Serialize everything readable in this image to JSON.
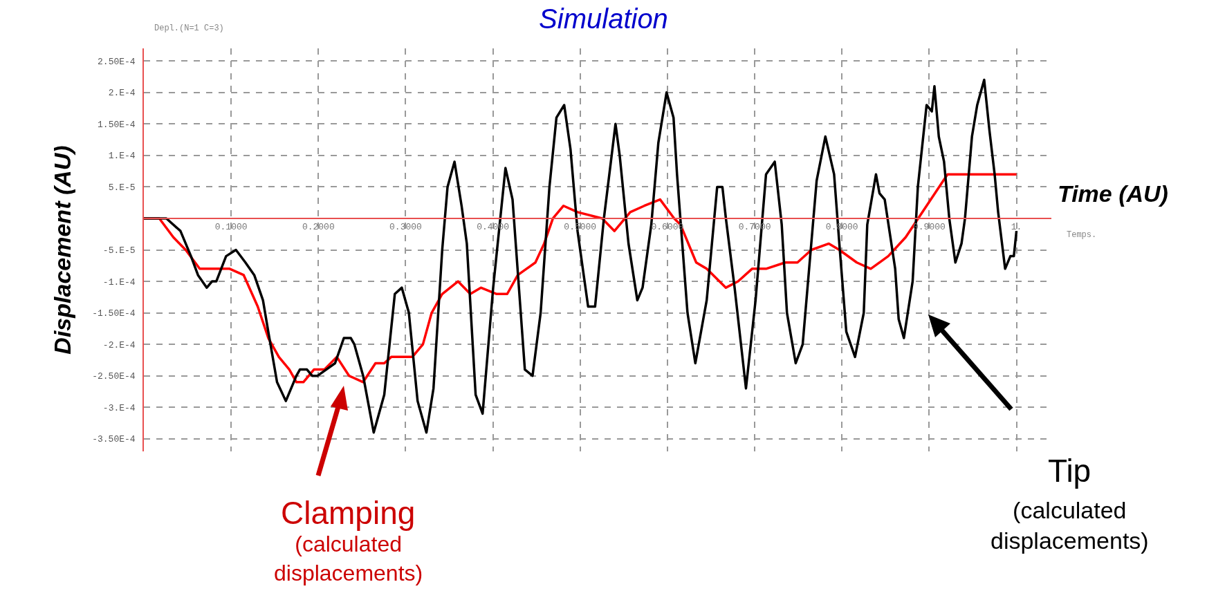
{
  "chart_data": {
    "type": "line",
    "title": "Simulation",
    "xlabel": "Time (AU)",
    "ylabel": "Displacement (AU)",
    "xlim": [
      0,
      1.04
    ],
    "ylim": [
      -0.00037,
      0.00027
    ],
    "xticks": [
      {
        "value": 0.1,
        "label": "0.1000"
      },
      {
        "value": 0.2,
        "label": "0.2000"
      },
      {
        "value": 0.3,
        "label": "0.3000"
      },
      {
        "value": 0.4,
        "label": "0.4000"
      },
      {
        "value": 0.5,
        "label": "0.5000"
      },
      {
        "value": 0.6,
        "label": "0.6000"
      },
      {
        "value": 0.7,
        "label": "0.7000"
      },
      {
        "value": 0.8,
        "label": "0.8000"
      },
      {
        "value": 0.9,
        "label": "0.9000"
      },
      {
        "value": 1,
        "label": "1."
      }
    ],
    "yticks": [
      {
        "value": 0.00025,
        "label": "2.50E-4"
      },
      {
        "value": 0.0002,
        "label": "2.E-4"
      },
      {
        "value": 0.00015,
        "label": "1.50E-4"
      },
      {
        "value": 0.0001,
        "label": "1.E-4"
      },
      {
        "value": 5e-05,
        "label": "5.E-5"
      },
      {
        "value": -5e-05,
        "label": "-5.E-5"
      },
      {
        "value": -0.0001,
        "label": "-1.E-4"
      },
      {
        "value": -0.00015,
        "label": "-1.50E-4"
      },
      {
        "value": -0.0002,
        "label": "-2.E-4"
      },
      {
        "value": -0.00025,
        "label": "-2.50E-4"
      },
      {
        "value": -0.0003,
        "label": "-3.E-4"
      },
      {
        "value": -0.00035,
        "label": "-3.50E-4"
      }
    ],
    "grid": true,
    "marker": "none",
    "line_style": "solid",
    "series": [
      {
        "color": "#ff0000",
        "x": [
          0,
          0.0177,
          0.0338,
          0.0479,
          0.064,
          0.0761,
          0.083,
          0.0983,
          0.1144,
          0.1305,
          0.1426,
          0.1547,
          0.1667,
          0.1748,
          0.1828,
          0.1949,
          0.207,
          0.2211,
          0.2352,
          0.2513,
          0.2654,
          0.2755,
          0.2835,
          0.2956,
          0.3077,
          0.3198,
          0.3298,
          0.3419,
          0.36,
          0.3741,
          0.3862,
          0.4043,
          0.4164,
          0.4285,
          0.4487,
          0.4587,
          0.4688,
          0.4809,
          0.497,
          0.5252,
          0.5393,
          0.5574,
          0.5735,
          0.5916,
          0.6077,
          0.615,
          0.633,
          0.645,
          0.667,
          0.681,
          0.697,
          0.713,
          0.735,
          0.749,
          0.765,
          0.785,
          0.797,
          0.817,
          0.833,
          0.853,
          0.873,
          0.897,
          0.921,
          0.937,
          0.965,
          0.985,
          1.0
        ],
        "values": [
          0,
          0,
          -3e-05,
          -5e-05,
          -8e-05,
          -8e-05,
          -8e-05,
          -8e-05,
          -9e-05,
          -0.00014,
          -0.00019,
          -0.00022,
          -0.00024,
          -0.00026,
          -0.00026,
          -0.00024,
          -0.00024,
          -0.00022,
          -0.00025,
          -0.00026,
          -0.00023,
          -0.00023,
          -0.00022,
          -0.00022,
          -0.00022,
          -0.0002,
          -0.00015,
          -0.00012,
          -0.0001,
          -0.00012,
          -0.00011,
          -0.00012,
          -0.00012,
          -9e-05,
          -7e-05,
          -4e-05,
          0,
          2e-05,
          1e-05,
          0,
          -2e-05,
          1e-05,
          2e-05,
          3e-05,
          0,
          -1e-05,
          -7e-05,
          -8e-05,
          -0.00011,
          -0.0001,
          -8e-05,
          -8e-05,
          -7e-05,
          -7e-05,
          -5e-05,
          -4e-05,
          -5e-05,
          -7e-05,
          -8e-05,
          -6e-05,
          -3e-05,
          2e-05,
          7e-05,
          7e-05,
          7e-05,
          7e-05,
          7e-05
        ]
      },
      {
        "color": "#000000",
        "x": [
          0,
          0.0258,
          0.0419,
          0.054,
          0.062,
          0.0721,
          0.0781,
          0.083,
          0.0942,
          0.1055,
          0.1164,
          0.1265,
          0.1365,
          0.1426,
          0.1526,
          0.1627,
          0.1748,
          0.1788,
          0.1869,
          0.1929,
          0.199,
          0.209,
          0.2191,
          0.2292,
          0.2372,
          0.2412,
          0.2513,
          0.2634,
          0.2755,
          0.2876,
          0.2956,
          0.3037,
          0.3137,
          0.3238,
          0.3319,
          0.3419,
          0.348,
          0.356,
          0.3641,
          0.3701,
          0.3802,
          0.3882,
          0.4003,
          0.4144,
          0.4225,
          0.4366,
          0.4454,
          0.4547,
          0.4648,
          0.4728,
          0.4817,
          0.4889,
          0.497,
          0.5091,
          0.5171,
          0.5272,
          0.5352,
          0.5405,
          0.5453,
          0.5554,
          0.5655,
          0.5715,
          0.5815,
          0.5896,
          0.599,
          0.607,
          0.611,
          0.623,
          0.632,
          0.645,
          0.651,
          0.657,
          0.663,
          0.667,
          0.677,
          0.69,
          0.701,
          0.713,
          0.723,
          0.731,
          0.737,
          0.747,
          0.755,
          0.771,
          0.781,
          0.791,
          0.797,
          0.805,
          0.815,
          0.825,
          0.829,
          0.839,
          0.843,
          0.849,
          0.861,
          0.865,
          0.871,
          0.881,
          0.887,
          0.897,
          0.903,
          0.906,
          0.911,
          0.917,
          0.923,
          0.93,
          0.937,
          0.941,
          0.949,
          0.955,
          0.963,
          0.969,
          0.975,
          0.979,
          0.987,
          0.993,
          0.997,
          1.0
        ],
        "values": [
          0,
          0,
          -2e-05,
          -6e-05,
          -9e-05,
          -0.00011,
          -0.0001,
          -0.0001,
          -6e-05,
          -5e-05,
          -7e-05,
          -9e-05,
          -0.00013,
          -0.00018,
          -0.00026,
          -0.00029,
          -0.00025,
          -0.00024,
          -0.00024,
          -0.00025,
          -0.00025,
          -0.00024,
          -0.00023,
          -0.00019,
          -0.00019,
          -0.0002,
          -0.00025,
          -0.00034,
          -0.00028,
          -0.00012,
          -0.00011,
          -0.00015,
          -0.00029,
          -0.00034,
          -0.00027,
          -5e-05,
          5e-05,
          9e-05,
          2e-05,
          -4e-05,
          -0.00028,
          -0.00031,
          -0.00011,
          8e-05,
          3e-05,
          -0.00024,
          -0.00025,
          -0.00015,
          5e-05,
          0.00016,
          0.00018,
          0.00011,
          -2e-05,
          -0.00014,
          -0.00014,
          0,
          9e-05,
          0.00015,
          0.0001,
          -4e-05,
          -0.00013,
          -0.00011,
          -1e-05,
          0.00012,
          0.0002,
          0.00016,
          7e-05,
          -0.00015,
          -0.00023,
          -0.00013,
          -4e-05,
          5e-05,
          5e-05,
          0,
          -0.00011,
          -0.00027,
          -0.00013,
          7e-05,
          9e-05,
          -1e-05,
          -0.00015,
          -0.00023,
          -0.0002,
          6e-05,
          0.00013,
          7e-05,
          -4e-05,
          -0.00018,
          -0.00022,
          -0.00015,
          -1e-05,
          7e-05,
          4e-05,
          3e-05,
          -8e-05,
          -0.00016,
          -0.00019,
          -0.0001,
          5e-05,
          0.00018,
          0.00017,
          0.00021,
          0.00013,
          9e-05,
          0,
          -7e-05,
          -4e-05,
          0,
          0.00013,
          0.00018,
          0.00022,
          0.00014,
          7e-05,
          1e-05,
          -8e-05,
          -6e-05,
          -6e-05,
          -2e-05
        ]
      }
    ],
    "annotations": [
      "Clamping",
      "(calculated displacements)",
      "Tip",
      "(calculated displacements)",
      "Depl.(N=1 C=3)",
      "Temps."
    ]
  }
}
